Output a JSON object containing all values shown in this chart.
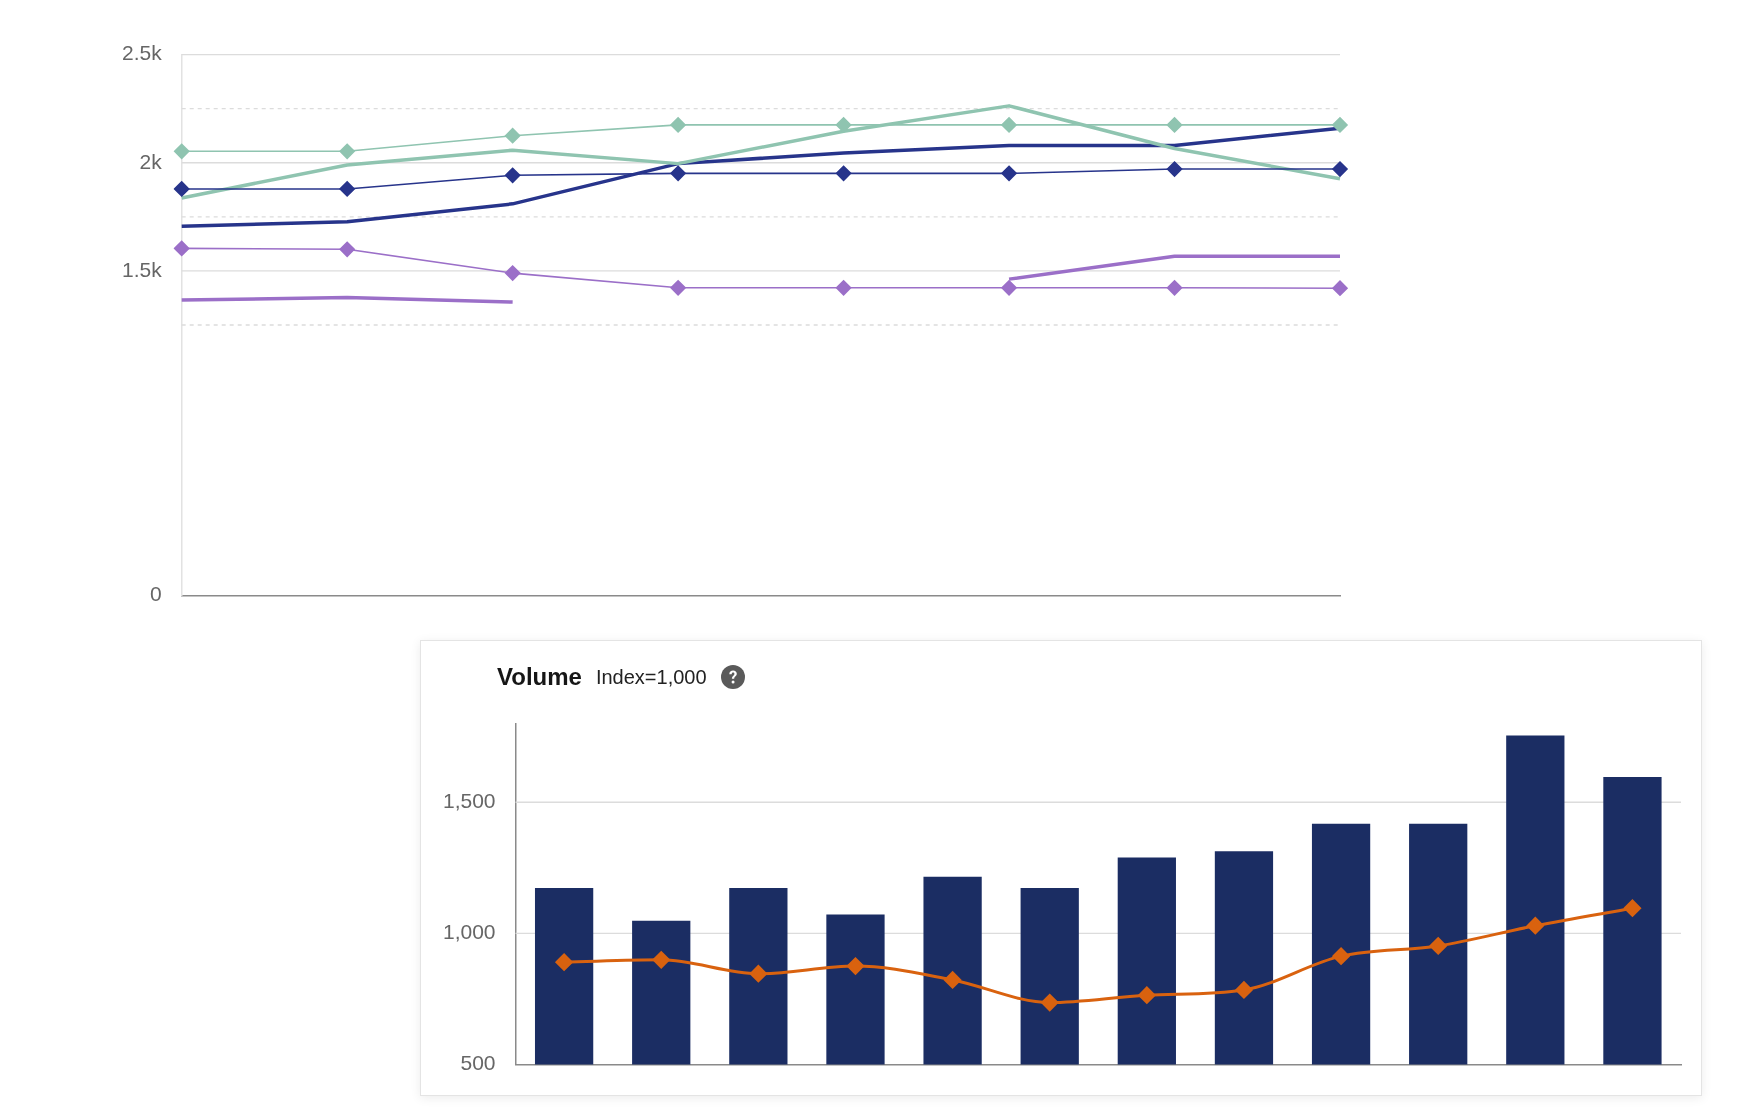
{
  "chart_data": [
    {
      "type": "line",
      "categories": [
        null,
        null,
        null,
        null,
        null,
        null,
        null,
        null
      ],
      "ylim": [
        0,
        2500
      ],
      "yticks": [
        {
          "value": 0,
          "label": "0"
        },
        {
          "value": 1250,
          "label": null
        },
        {
          "value": 1500,
          "label": "1.5k"
        },
        {
          "value": 1750,
          "label": null
        },
        {
          "value": 2000,
          "label": "2k"
        },
        {
          "value": 2250,
          "label": null
        },
        {
          "value": 2500,
          "label": "2.5k"
        }
      ],
      "tick_labels": "y",
      "grid": "y",
      "legend": false,
      "series": [
        {
          "color": "#8fc4b0",
          "marker": "diamond",
          "values": [
            2053,
            2053,
            2125,
            2175,
            2175,
            2175,
            2175,
            2175
          ]
        },
        {
          "color": "#27348b",
          "marker": "diamond",
          "values": [
            1879,
            1879,
            1942,
            1951,
            1951,
            1951,
            1971,
            1971
          ]
        },
        {
          "color": "#9b6fc8",
          "marker": "diamond",
          "values": [
            1604,
            1600,
            1490,
            1422,
            1422,
            1422,
            1422,
            1420
          ]
        },
        {
          "color": "#8fc4b0",
          "marker": "none",
          "values": [
            1837,
            1990,
            2058,
            1996,
            2146,
            2263,
            2066,
            1926
          ]
        },
        {
          "color": "#27348b",
          "marker": "none",
          "values": [
            1706,
            1727,
            1810,
            1996,
            2045,
            2080,
            2080,
            2160
          ]
        },
        {
          "color": "#9b6fc8",
          "marker": "none",
          "values": [
            1365,
            1377,
            1356,
            null,
            null,
            1462,
            1568,
            1568
          ]
        }
      ]
    },
    {
      "type": "bar",
      "title": "Volume",
      "subtitle": "Index=1,000",
      "categories": [
        null,
        null,
        null,
        null,
        null,
        null,
        null,
        null,
        null,
        null,
        null,
        null
      ],
      "ylim": [
        500,
        1800
      ],
      "yticks": [
        {
          "value": 500,
          "label": "500"
        },
        {
          "value": 1000,
          "label": "1,000"
        },
        {
          "value": 1500,
          "label": "1,500"
        }
      ],
      "tick_labels": "y",
      "grid": "y",
      "legend": false,
      "series": [
        {
          "type": "bar",
          "color": "#1b2d63",
          "values": [
            1173,
            1048,
            1173,
            1072,
            1216,
            1173,
            1289,
            1313,
            1418,
            1418,
            1755,
            1596
          ]
        },
        {
          "type": "line",
          "color": "#d9620f",
          "marker": "diamond",
          "values": [
            890,
            899,
            846,
            875,
            822,
            736,
            764,
            784,
            913,
            952,
            1029,
            1096
          ]
        }
      ]
    }
  ]
}
